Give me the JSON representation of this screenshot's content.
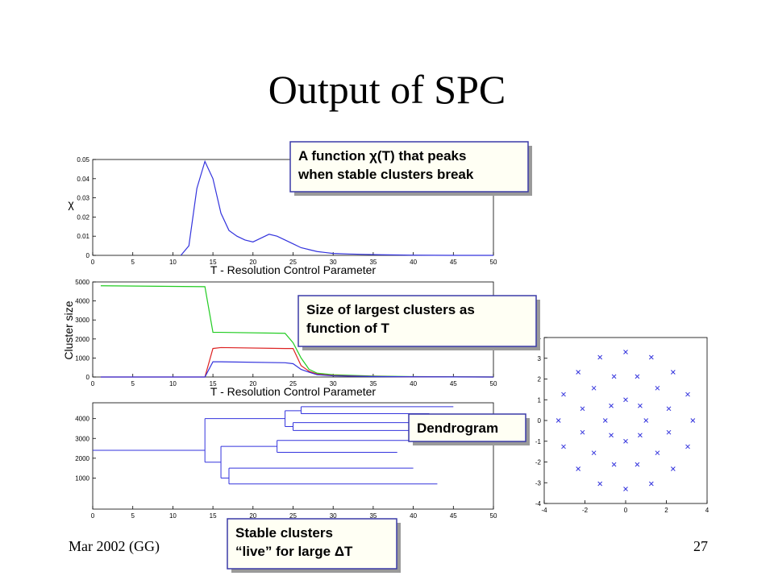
{
  "slide": {
    "title": "Output of SPC",
    "footer": "Mar 2002 (GG)",
    "page_number": "27",
    "callouts": [
      {
        "lines": [
          "A function χ(T) that peaks",
          "when stable clusters break"
        ]
      },
      {
        "lines": [
          "Size of largest clusters as",
          "function of T"
        ]
      },
      {
        "lines": [
          "Dendrogram"
        ]
      },
      {
        "lines": [
          "Stable clusters",
          "“live” for large ΔT"
        ]
      }
    ]
  },
  "chart_data": [
    {
      "type": "line",
      "y_label": "χ",
      "x_label": "T - Resolution Control Parameter",
      "x": [
        11,
        12,
        13,
        14,
        15,
        16,
        17,
        18,
        19,
        20,
        21,
        22,
        23,
        24,
        25,
        26,
        27,
        28,
        29,
        30,
        32,
        34,
        36,
        38,
        40,
        45,
        50
      ],
      "series": [
        {
          "color": "#3333dd",
          "values": [
            0,
            0.005,
            0.035,
            0.049,
            0.04,
            0.022,
            0.013,
            0.01,
            0.008,
            0.007,
            0.009,
            0.011,
            0.01,
            0.008,
            0.006,
            0.004,
            0.003,
            0.002,
            0.0015,
            0.001,
            0.0007,
            0.0005,
            0.0003,
            0.0002,
            0.0001,
            0,
            0
          ]
        }
      ],
      "xlim": [
        0,
        50
      ],
      "xticks": [
        0,
        5,
        10,
        15,
        20,
        25,
        30,
        35,
        40,
        45,
        50
      ],
      "ylim": [
        0,
        0.05
      ],
      "yticks": [
        0,
        0.01,
        0.02,
        0.03,
        0.04,
        0.05
      ]
    },
    {
      "type": "line",
      "y_label": "Cluster size",
      "x_label": "T - Resolution Control Parameter",
      "x": [
        1,
        14,
        15,
        16,
        24,
        25,
        26,
        27,
        28,
        30,
        35,
        40,
        50
      ],
      "series": [
        {
          "color": "#22cc22",
          "values": [
            4800,
            4750,
            2350,
            2350,
            2300,
            1800,
            1000,
            400,
            200,
            120,
            50,
            20,
            0
          ]
        },
        {
          "color": "#dd2222",
          "values": [
            0,
            0,
            1500,
            1550,
            1500,
            1500,
            600,
            300,
            150,
            80,
            30,
            10,
            0
          ]
        },
        {
          "color": "#3333dd",
          "values": [
            0,
            0,
            800,
            800,
            750,
            700,
            400,
            250,
            120,
            60,
            20,
            10,
            0
          ]
        }
      ],
      "xlim": [
        0,
        50
      ],
      "xticks": [
        0,
        5,
        10,
        15,
        20,
        25,
        30,
        35,
        40,
        45,
        50
      ],
      "ylim": [
        0,
        5000
      ],
      "yticks": [
        0,
        1000,
        2000,
        3000,
        4000,
        5000
      ]
    },
    {
      "type": "dendrogram",
      "color": "#3333dd",
      "tree": {
        "y": 2400,
        "t": 14,
        "children": [
          {
            "y": 4000,
            "t": 24,
            "children": [
              {
                "y": 4400,
                "t": 26,
                "children": [
                  {
                    "y": 4600,
                    "t": 45
                  },
                  {
                    "y": 4250,
                    "t": 42
                  }
                ]
              },
              {
                "y": 3600,
                "t": 25,
                "children": [
                  {
                    "y": 3800,
                    "t": 40
                  },
                  {
                    "y": 3400,
                    "t": 44
                  }
                ]
              }
            ]
          },
          {
            "y": 1800,
            "t": 16,
            "children": [
              {
                "y": 2600,
                "t": 23,
                "children": [
                  {
                    "y": 2900,
                    "t": 42
                  },
                  {
                    "y": 2300,
                    "t": 38
                  }
                ]
              },
              {
                "y": 1000,
                "t": 17,
                "children": [
                  {
                    "y": 1500,
                    "t": 40
                  },
                  {
                    "y": 700,
                    "t": 43
                  }
                ]
              }
            ]
          }
        ]
      },
      "xlim": [
        0,
        50
      ],
      "xticks": [
        0,
        5,
        10,
        15,
        20,
        25,
        30,
        35,
        40,
        45,
        50
      ],
      "ylim": [
        0,
        4800
      ],
      "yticks": [
        1000,
        2000,
        3000,
        4000
      ]
    },
    {
      "type": "scatter",
      "color": "#3333dd",
      "x": [
        3.3,
        3.05,
        2.33,
        1.26,
        0,
        -1.26,
        -2.33,
        -3.05,
        -3.3,
        -3.05,
        -2.33,
        -1.26,
        0,
        1.26,
        2.33,
        3.05,
        2.12,
        1.56,
        0.57,
        -0.57,
        -1.56,
        -2.12,
        -2.12,
        -1.56,
        -0.57,
        0.57,
        1.56,
        2.12,
        1,
        0.71,
        0,
        -0.71,
        -1,
        -0.71,
        0,
        0.71
      ],
      "y": [
        0,
        1.26,
        2.33,
        3.05,
        3.3,
        3.05,
        2.33,
        1.26,
        0,
        -1.26,
        -2.33,
        -3.05,
        -3.3,
        -3.05,
        -2.33,
        -1.26,
        0.57,
        1.56,
        2.12,
        2.12,
        1.56,
        0.57,
        -0.57,
        -1.56,
        -2.12,
        -2.12,
        -1.56,
        -0.57,
        0,
        0.71,
        1,
        0.71,
        0,
        -0.71,
        -1,
        -0.71
      ],
      "xlim": [
        -4,
        4
      ],
      "xticks": [
        -4,
        -2,
        0,
        2,
        4
      ],
      "ylim": [
        -4,
        4
      ],
      "yticks": [
        -4,
        -3,
        -2,
        -1,
        0,
        1,
        2,
        3,
        4
      ]
    }
  ]
}
